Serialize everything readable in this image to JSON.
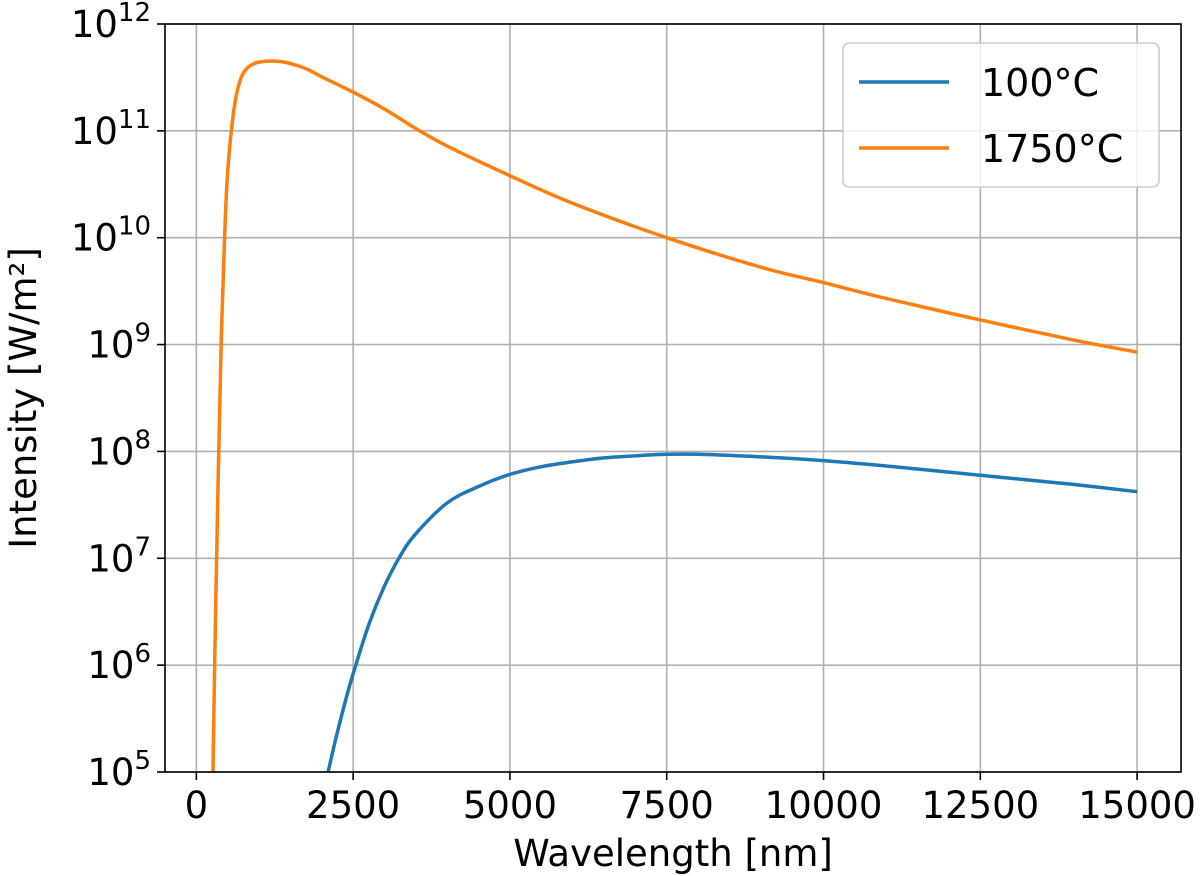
{
  "chart_data": {
    "type": "line",
    "title": "",
    "xlabel": "Wavelength [nm]",
    "ylabel": "Intensity [W/m²]",
    "xlim": [
      -500,
      15700
    ],
    "ylim": [
      100000,
      1000000000000
    ],
    "yscale": "log",
    "grid": true,
    "legend_position": "top-right",
    "x_ticks": [
      {
        "value": 0,
        "label": "0"
      },
      {
        "value": 2500,
        "label": "2500"
      },
      {
        "value": 5000,
        "label": "5000"
      },
      {
        "value": 7500,
        "label": "7500"
      },
      {
        "value": 10000,
        "label": "10000"
      },
      {
        "value": 12500,
        "label": "12500"
      },
      {
        "value": 15000,
        "label": "15000"
      }
    ],
    "y_ticks": [
      {
        "exp": 5,
        "base": "10",
        "sup": "5"
      },
      {
        "exp": 6,
        "base": "10",
        "sup": "6"
      },
      {
        "exp": 7,
        "base": "10",
        "sup": "7"
      },
      {
        "exp": 8,
        "base": "10",
        "sup": "8"
      },
      {
        "exp": 9,
        "base": "10",
        "sup": "9"
      },
      {
        "exp": 10,
        "base": "10",
        "sup": "10"
      },
      {
        "exp": 11,
        "base": "10",
        "sup": "11"
      },
      {
        "exp": 12,
        "base": "10",
        "sup": "12"
      }
    ],
    "series": [
      {
        "name": "100°C",
        "color": "#1f77b4",
        "x": [
          2100,
          2200,
          2300,
          2400,
          2500,
          2750,
          3000,
          3250,
          3500,
          4000,
          4500,
          5000,
          5500,
          6000,
          6500,
          7000,
          7500,
          8000,
          9000,
          10000,
          11000,
          12000,
          13000,
          14000,
          15000
        ],
        "y": [
          100000,
          180000,
          310000,
          520000,
          830000,
          2400000,
          5500000,
          10500000,
          17000000,
          33000000,
          47000000,
          61000000,
          72000000,
          80000000,
          87000000,
          91000000,
          94000000,
          94000000,
          89000000,
          82000000,
          73000000,
          64000000,
          56000000,
          49000000,
          42000000
        ]
      },
      {
        "name": "1750°C",
        "color": "#ff7f0e",
        "x": [
          265,
          300,
          350,
          400,
          450,
          500,
          600,
          700,
          800,
          900,
          1000,
          1200,
          1400,
          1600,
          1800,
          2000,
          2500,
          3000,
          3500,
          4000,
          5000,
          6000,
          7500,
          9000,
          10000,
          11000,
          12500,
          14000,
          15000
        ],
        "y": [
          100000,
          1900000,
          65000000,
          1300000000,
          10000000000,
          42000000000,
          160000000000,
          300000000000,
          380000000000,
          420000000000,
          440000000000,
          450000000000,
          440000000000,
          410000000000,
          370000000000,
          320000000000,
          230000000000,
          160000000000,
          105000000000,
          72000000000,
          38000000000,
          21000000000,
          10000000000,
          5300000000,
          3800000000,
          2700000000,
          1700000000,
          1100000000,
          850000000
        ]
      }
    ]
  }
}
